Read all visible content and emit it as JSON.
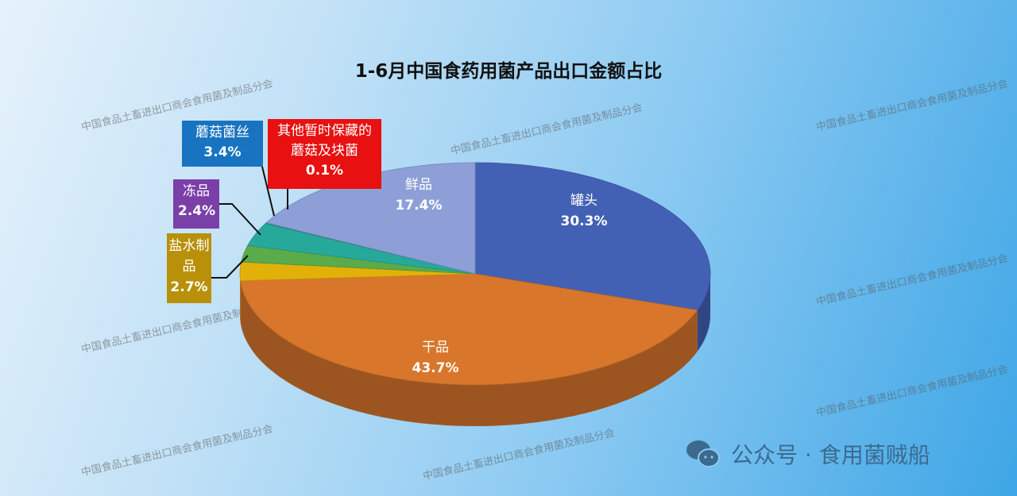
{
  "chart_data": {
    "type": "pie",
    "title": "1-6月中国食药用菌产品出口金额占比",
    "slices": [
      {
        "label": "罐头",
        "value": 30.3,
        "pct_label": "30.3%",
        "color": "#4361b4",
        "label_style": "inside"
      },
      {
        "label": "干品",
        "value": 43.7,
        "pct_label": "43.7%",
        "color": "#d8762c",
        "label_style": "inside"
      },
      {
        "label": "盐水制品",
        "value": 2.7,
        "pct_label": "2.7%",
        "color": "#e2b109",
        "label_style": "callout",
        "box_color": "#b8900a"
      },
      {
        "label": "冻品",
        "value": 2.4,
        "pct_label": "2.4%",
        "color": "#5aab4a",
        "label_style": "callout",
        "box_color": "#7b3fa8"
      },
      {
        "label": "蘑菇菌丝",
        "value": 3.4,
        "pct_label": "3.4%",
        "color": "#26a99a",
        "label_style": "callout",
        "box_color": "#1874c0"
      },
      {
        "label": "其他暂时保藏的蘑菇及块菌",
        "value": 0.1,
        "pct_label": "0.1%",
        "color": "#2a8f8a",
        "label_style": "callout",
        "box_color": "#e81010"
      },
      {
        "label": "鲜品",
        "value": 17.4,
        "pct_label": "17.4%",
        "color": "#8d9fd6",
        "label_style": "inside"
      }
    ],
    "style": "3d",
    "start": "top",
    "direction": "clockwise"
  },
  "watermark": "中国食品土畜进出口商会食用菌及制品分会",
  "footer": {
    "icon": "wechat-icon",
    "text": "公众号 · 食用菌贼船"
  }
}
